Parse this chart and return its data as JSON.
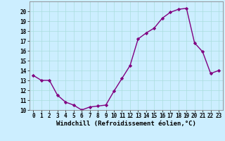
{
  "x": [
    0,
    1,
    2,
    3,
    4,
    5,
    6,
    7,
    8,
    9,
    10,
    11,
    12,
    13,
    14,
    15,
    16,
    17,
    18,
    19,
    20,
    21,
    22,
    23
  ],
  "y": [
    13.5,
    13.0,
    13.0,
    11.5,
    10.8,
    10.5,
    10.0,
    10.3,
    10.4,
    10.5,
    11.9,
    13.2,
    14.5,
    17.2,
    17.8,
    18.3,
    19.3,
    19.9,
    20.2,
    20.3,
    16.8,
    15.9,
    13.7,
    14.0
  ],
  "line_color": "#800080",
  "marker": "D",
  "markersize": 2.2,
  "linewidth": 1.0,
  "bg_color": "#cceeff",
  "grid_color": "#aadddd",
  "xlabel": "Windchill (Refroidissement éolien,°C)",
  "xlabel_fontsize": 6.5,
  "tick_fontsize": 5.5,
  "xlim": [
    -0.5,
    23.5
  ],
  "ylim": [
    10,
    21
  ],
  "yticks": [
    10,
    11,
    12,
    13,
    14,
    15,
    16,
    17,
    18,
    19,
    20
  ],
  "xticks": [
    0,
    1,
    2,
    3,
    4,
    5,
    6,
    7,
    8,
    9,
    10,
    11,
    12,
    13,
    14,
    15,
    16,
    17,
    18,
    19,
    20,
    21,
    22,
    23
  ]
}
